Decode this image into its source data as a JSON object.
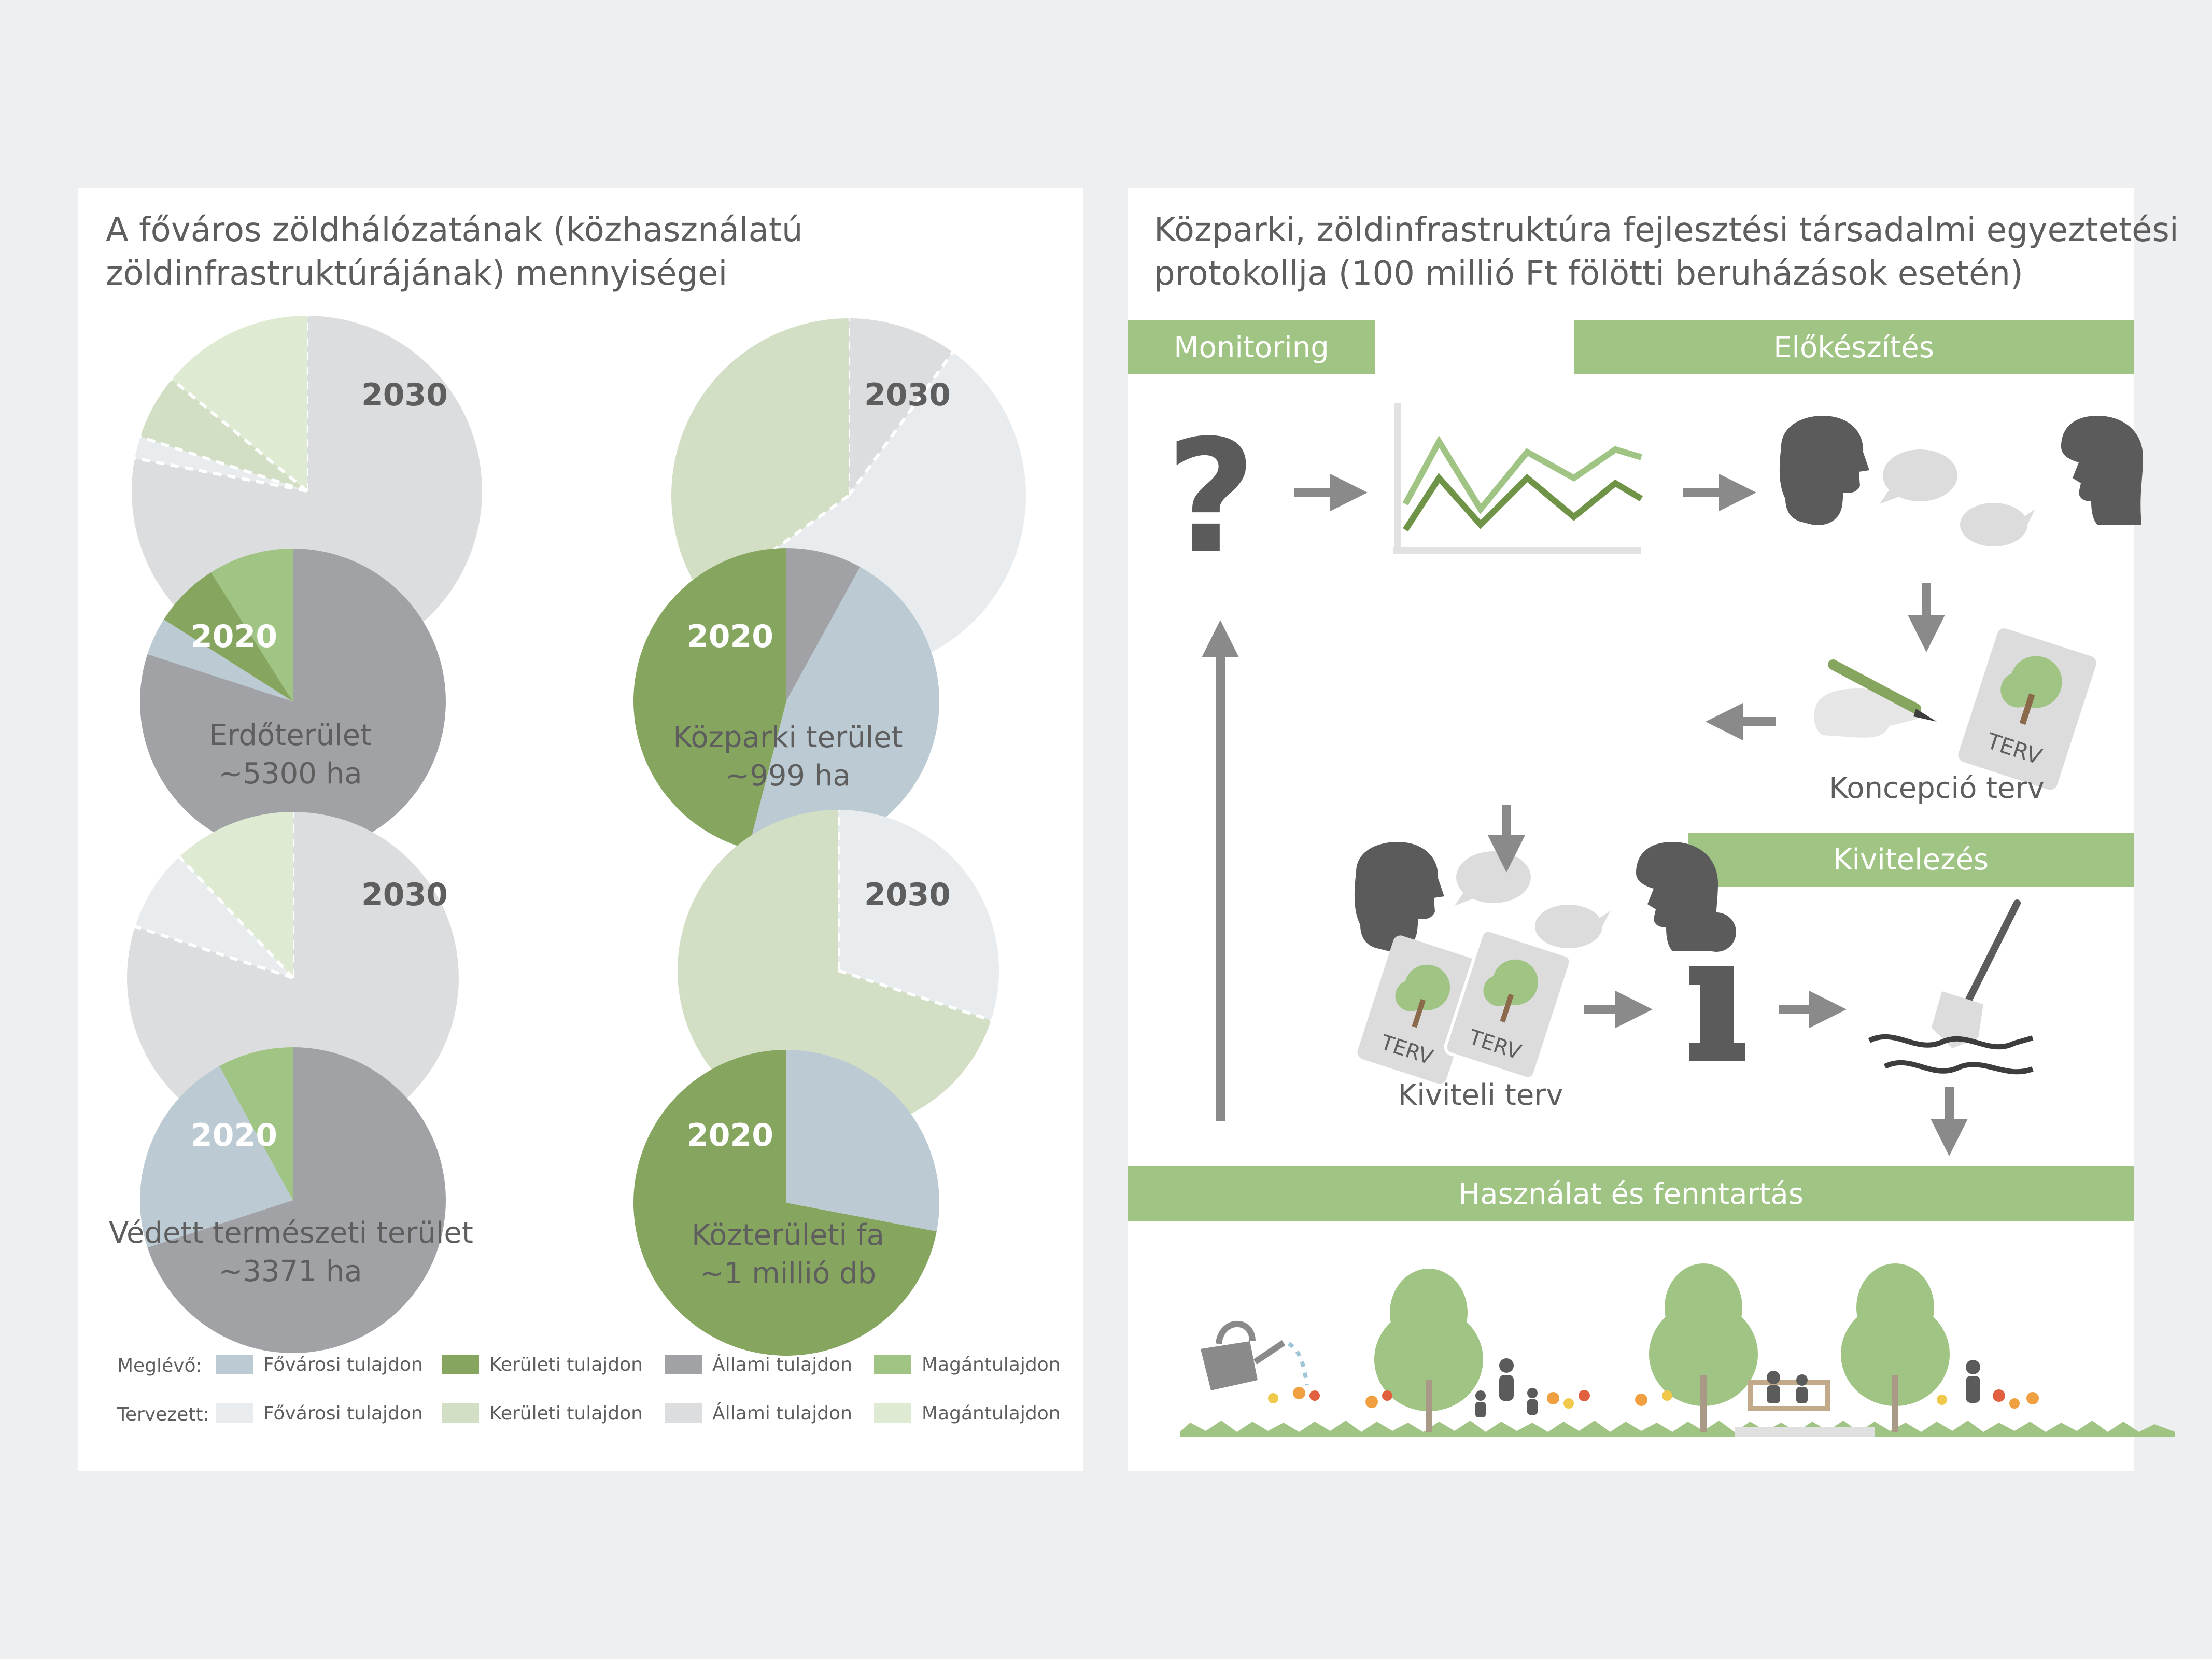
{
  "left_panel": {
    "title_line1": "A főváros zöldhálózatának (közhasználatú",
    "title_line2": "zöldinfrastruktúrájának) mennyiségei",
    "year_2030": "2030",
    "year_2020": "2020",
    "charts": [
      {
        "label_line1": "Erdőterület",
        "label_line2": "~5300 ha"
      },
      {
        "label_line1": "Közparki terület",
        "label_line2": "~999 ha"
      },
      {
        "label_line1": "Védett természeti terület",
        "label_line2": "~3371 ha"
      },
      {
        "label_line1": "Közterületi fa",
        "label_line2": "~1 millió db"
      }
    ],
    "legend": {
      "existing_label": "Meglévő:",
      "planned_label": "Tervezett:",
      "items": [
        "Fővárosi tulajdon",
        "Kerületi tulajdon",
        "Állami tulajdon",
        "Magántulajdon"
      ],
      "existing_colors": [
        "#bccbd3",
        "#86a660",
        "#a1a2a6",
        "#a0c483"
      ],
      "planned_colors": [
        "#e8ecee",
        "#d2dfc5",
        "#dcdddf",
        "#deebd2"
      ]
    }
  },
  "right_panel": {
    "title_line1": "Közparki, zöldinfrastruktúra fejlesztési társadalmi egyeztetési",
    "title_line2": "protokollja (100 millió Ft fölötti beruházások esetén)",
    "stages": {
      "monitoring": "Monitoring",
      "preparation": "Előkészítés",
      "implementation": "Kivitelezés",
      "use": "Használat és fenntartás"
    },
    "steps": {
      "concept_plan": "Koncepció terv",
      "execution_plan": "Kiviteli terv",
      "terv": "TERV"
    },
    "icons": [
      "question-mark-icon",
      "line-chart-icon",
      "dialogue-icon",
      "drawing-hand-icon",
      "info-icon",
      "shovel-icon",
      "watering-can-icon",
      "tree-icon",
      "people-icon",
      "bench-icon",
      "flowers-icon",
      "arrow-icon"
    ]
  },
  "chart_data": [
    {
      "type": "pie",
      "label": "Erdőterület ~5300 ha",
      "series": [
        {
          "name": "2020",
          "categories": [
            "Fővárosi tulajdon",
            "Kerületi tulajdon",
            "Állami tulajdon",
            "Magántulajdon"
          ],
          "values": [
            4,
            7,
            80,
            9
          ]
        },
        {
          "name": "2030",
          "categories": [
            "Fővárosi tulajdon",
            "Kerületi tulajdon",
            "Állami tulajdon",
            "Magántulajdon"
          ],
          "values": [
            2,
            6,
            78,
            14
          ]
        }
      ]
    },
    {
      "type": "pie",
      "label": "Közparki terület ~999 ha",
      "series": [
        {
          "name": "2020",
          "categories": [
            "Fővárosi tulajdon",
            "Kerületi tulajdon",
            "Állami tulajdon",
            "Magántulajdon"
          ],
          "values": [
            46,
            46,
            8,
            0
          ]
        },
        {
          "name": "2030",
          "categories": [
            "Fővárosi tulajdon",
            "Kerületi tulajdon",
            "Állami tulajdon",
            "Magántulajdon"
          ],
          "values": [
            55,
            35,
            10,
            0
          ]
        }
      ]
    },
    {
      "type": "pie",
      "label": "Védett természeti terület ~3371 ha",
      "series": [
        {
          "name": "2020",
          "categories": [
            "Fővárosi tulajdon",
            "Kerületi tulajdon",
            "Állami tulajdon",
            "Magántulajdon"
          ],
          "values": [
            22,
            0,
            70,
            8
          ]
        },
        {
          "name": "2030",
          "categories": [
            "Fővárosi tulajdon",
            "Kerületi tulajdon",
            "Állami tulajdon",
            "Magántulajdon"
          ],
          "values": [
            8,
            0,
            80,
            12
          ]
        }
      ]
    },
    {
      "type": "pie",
      "label": "Közterületi fa ~1 millió db",
      "series": [
        {
          "name": "2020",
          "categories": [
            "Fővárosi tulajdon",
            "Kerületi tulajdon",
            "Állami tulajdon",
            "Magántulajdon"
          ],
          "values": [
            28,
            72,
            0,
            0
          ]
        },
        {
          "name": "2030",
          "categories": [
            "Fővárosi tulajdon",
            "Kerületi tulajdon",
            "Állami tulajdon",
            "Magántulajdon"
          ],
          "values": [
            30,
            70,
            0,
            0
          ]
        }
      ]
    }
  ]
}
